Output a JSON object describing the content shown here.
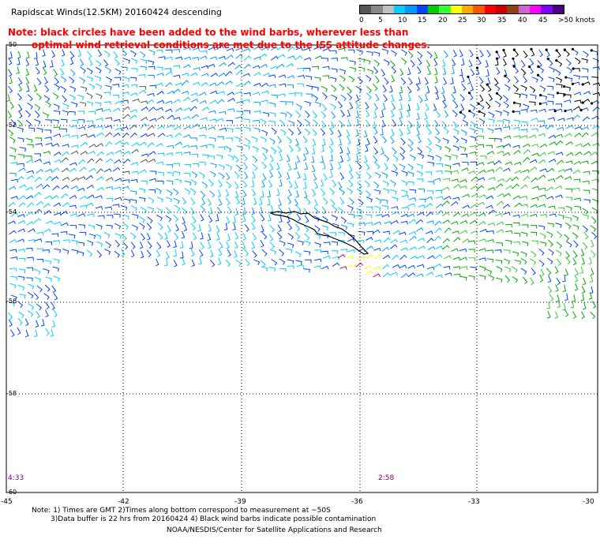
{
  "title": "Rapidscat Winds(12.5KM) 20160424 descending",
  "colorbar": {
    "colors": [
      "#555555",
      "#888888",
      "#c0c0c0",
      "#00ccff",
      "#0099ff",
      "#0044ff",
      "#00cc00",
      "#33ff33",
      "#ffff00",
      "#ffaa00",
      "#ff5500",
      "#ff0000",
      "#cc0000",
      "#8b4513",
      "#cc66cc",
      "#ff00ff",
      "#8000ff",
      "#4b0082"
    ],
    "labels": [
      "0",
      "5",
      "10",
      "15",
      "20",
      "25",
      "30",
      "35",
      "40",
      "45",
      ">50 knots"
    ]
  },
  "note_red": {
    "line1": "Note: black circles have been added to the wind barbs, wherever less than",
    "line2": "optimal wind retrieval conditions are met due to the ISS attitude changes."
  },
  "axes": {
    "lat_labels": [
      "-50",
      "-52",
      "-54",
      "-56",
      "-58",
      "-60"
    ],
    "lon_labels": [
      "-45",
      "-42",
      "-39",
      "-36",
      "-33",
      "-30"
    ]
  },
  "times": [
    "4:33",
    "2:58"
  ],
  "footer": {
    "line1": "Note: 1) Times are GMT 2)Times along bottom correspond to measurement at ~50S",
    "line2": "3)Data buffer is 22 hrs from 20160424 4) Black wind barbs indicate possible contamination",
    "credit": "NOAA/NESDIS/Center for Satellite Applications and Research"
  }
}
